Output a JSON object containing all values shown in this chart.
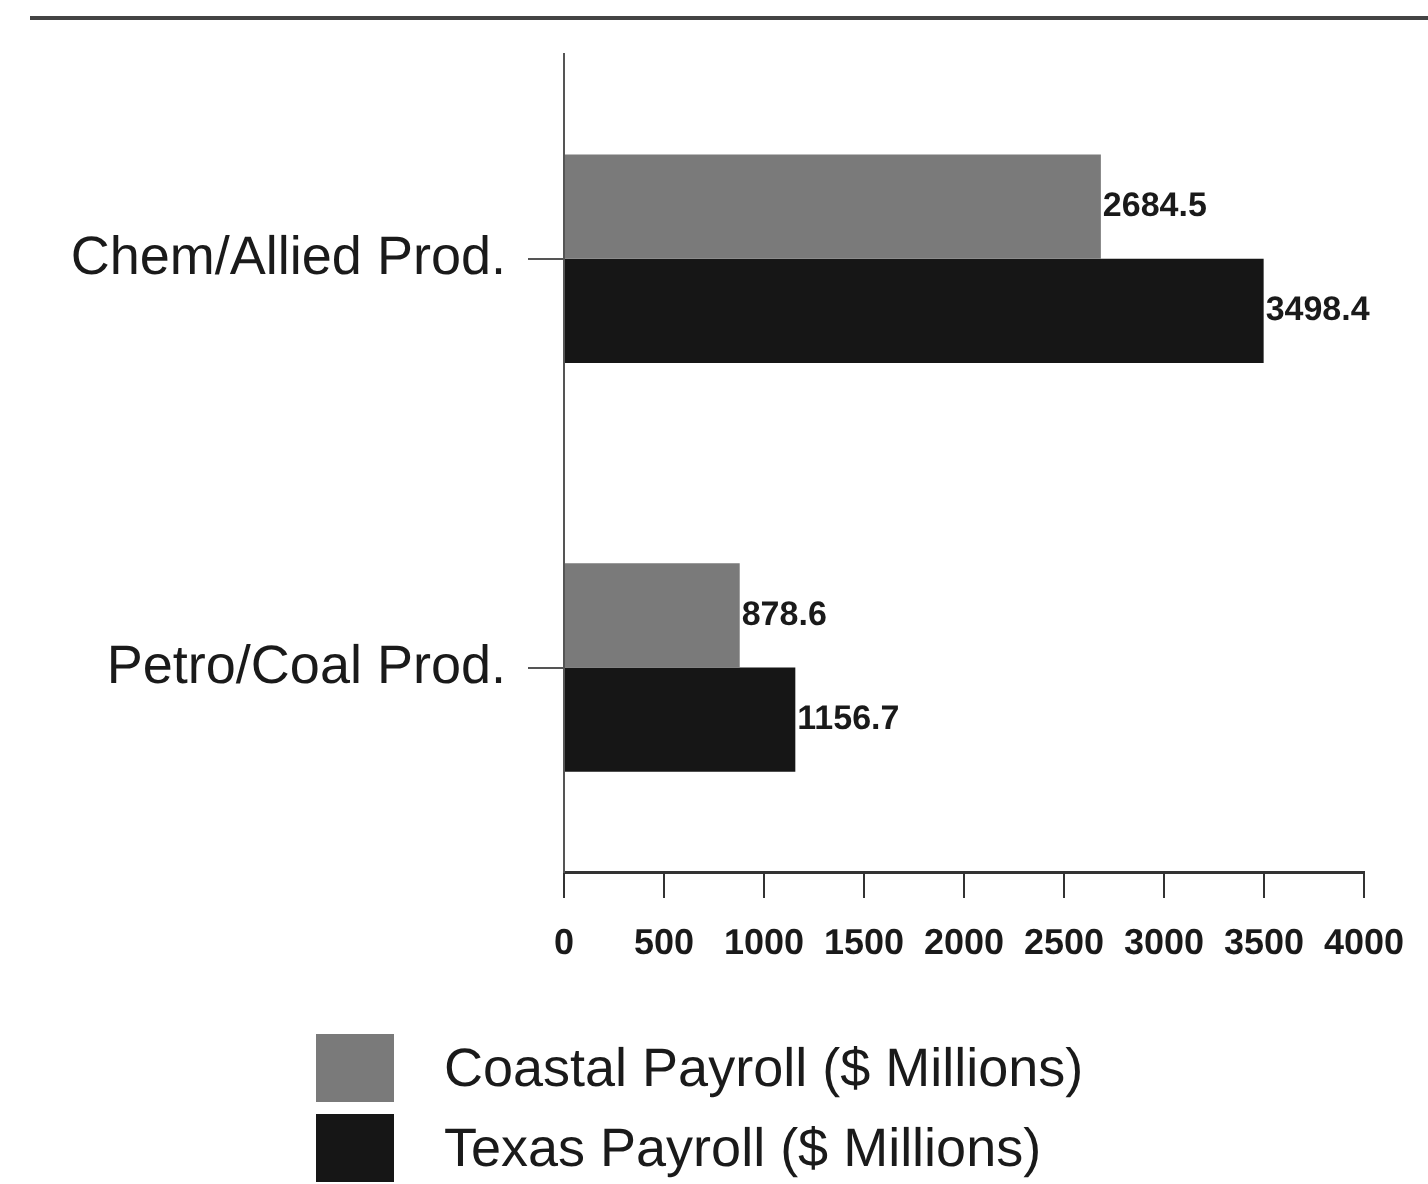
{
  "chart_data": {
    "type": "bar",
    "orientation": "horizontal",
    "categories": [
      "Chem/Allied Prod.",
      "Petro/Coal Prod."
    ],
    "series": [
      {
        "name": "Coastal Payroll ($ Millions)",
        "color": "#7a7a7a",
        "values": [
          2684.5,
          878.6
        ]
      },
      {
        "name": "Texas Payroll ($ Millions)",
        "color": "#161616",
        "values": [
          3498.4,
          1156.7
        ]
      }
    ],
    "xlim": [
      0,
      4000
    ],
    "xticks": [
      0,
      500,
      1000,
      1500,
      2000,
      2500,
      3000,
      3500,
      4000
    ],
    "data_labels": true,
    "legend": "bottom",
    "grid": false
  }
}
